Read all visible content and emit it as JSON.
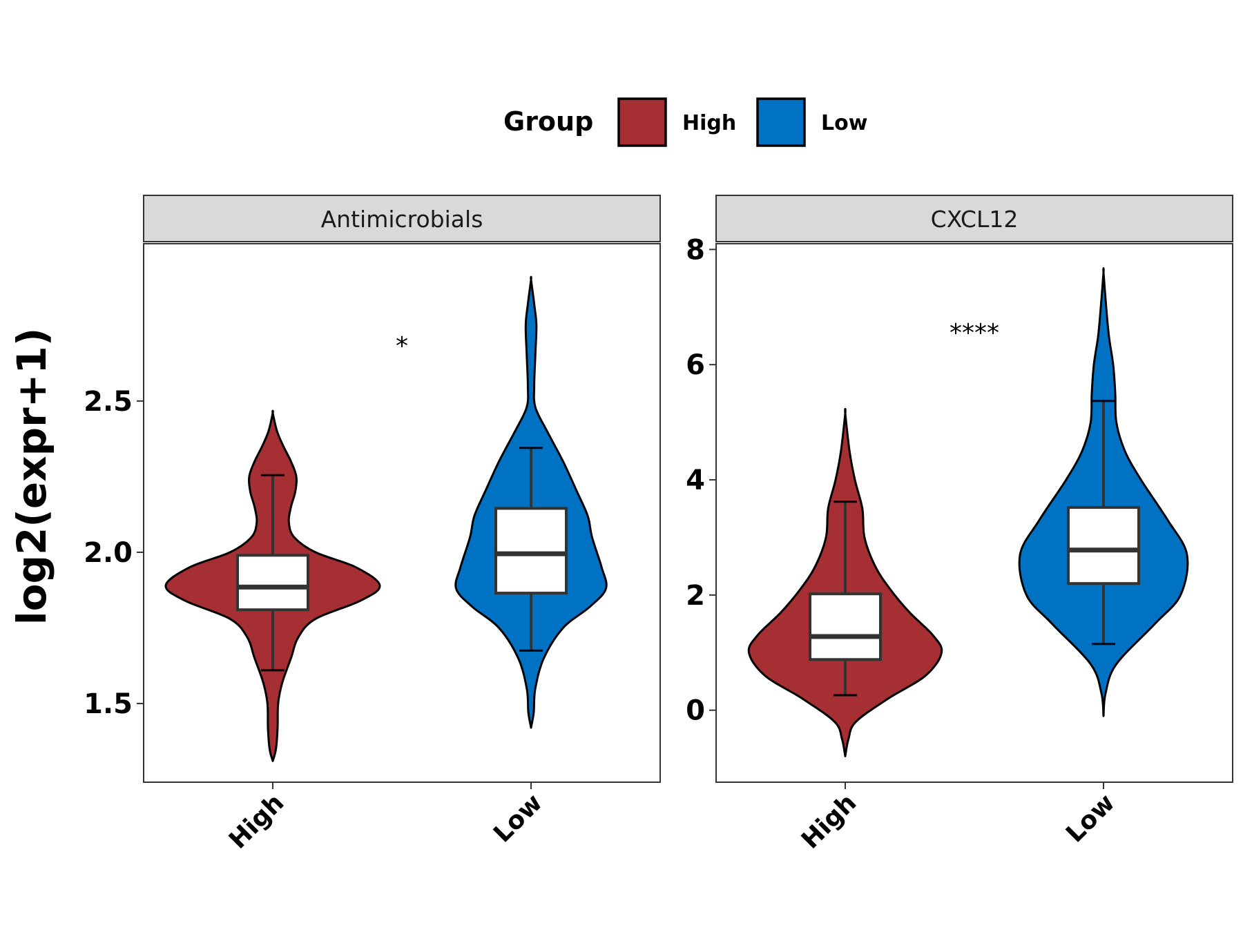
{
  "legend": {
    "title": "Group",
    "items": [
      {
        "label": "High",
        "color": "#A52F33"
      },
      {
        "label": "Low",
        "color": "#0072C4"
      }
    ]
  },
  "chart_data": {
    "type": "violin",
    "ylabel": "log2(expr+1)",
    "groups": [
      "High",
      "Low"
    ],
    "group_colors": {
      "High": "#A52F33",
      "Low": "#0072C4"
    },
    "panels": [
      {
        "title": "Antimicrobials",
        "ylim": [
          1.24,
          3.02
        ],
        "yticks": [
          1.5,
          2.0,
          2.5
        ],
        "significance": "*",
        "significance_y": 2.7,
        "violins": [
          {
            "group": "High",
            "profile": [
              [
                1.31,
                0.0
              ],
              [
                1.35,
                0.03
              ],
              [
                1.42,
                0.045
              ],
              [
                1.5,
                0.05
              ],
              [
                1.57,
                0.09
              ],
              [
                1.65,
                0.17
              ],
              [
                1.72,
                0.24
              ],
              [
                1.78,
                0.4
              ],
              [
                1.84,
                0.82
              ],
              [
                1.89,
                1.0
              ],
              [
                1.95,
                0.78
              ],
              [
                2.0,
                0.4
              ],
              [
                2.05,
                0.2
              ],
              [
                2.1,
                0.15
              ],
              [
                2.15,
                0.17
              ],
              [
                2.2,
                0.21
              ],
              [
                2.25,
                0.22
              ],
              [
                2.3,
                0.17
              ],
              [
                2.35,
                0.1
              ],
              [
                2.4,
                0.04
              ],
              [
                2.46,
                0.0
              ]
            ],
            "box": {
              "min": 1.61,
              "q1": 1.81,
              "median": 1.885,
              "q3": 1.99,
              "max": 2.255
            }
          },
          {
            "group": "Low",
            "profile": [
              [
                1.42,
                0.0
              ],
              [
                1.47,
                0.025
              ],
              [
                1.55,
                0.04
              ],
              [
                1.65,
                0.12
              ],
              [
                1.75,
                0.3
              ],
              [
                1.82,
                0.55
              ],
              [
                1.88,
                0.7
              ],
              [
                1.95,
                0.66
              ],
              [
                2.05,
                0.57
              ],
              [
                2.12,
                0.53
              ],
              [
                2.2,
                0.43
              ],
              [
                2.3,
                0.3
              ],
              [
                2.4,
                0.15
              ],
              [
                2.48,
                0.04
              ],
              [
                2.55,
                0.03
              ],
              [
                2.65,
                0.04
              ],
              [
                2.75,
                0.05
              ],
              [
                2.82,
                0.03
              ],
              [
                2.9,
                0.0
              ]
            ],
            "box": {
              "min": 1.675,
              "q1": 1.865,
              "median": 1.995,
              "q3": 2.145,
              "max": 2.345
            }
          }
        ]
      },
      {
        "title": "CXCL12",
        "ylim": [
          -1.25,
          8.1
        ],
        "yticks": [
          0,
          2,
          4,
          6,
          8
        ],
        "significance": "****",
        "significance_y": 6.65,
        "violins": [
          {
            "group": "High",
            "profile": [
              [
                -0.8,
                0.0
              ],
              [
                -0.5,
                0.03
              ],
              [
                -0.2,
                0.1
              ],
              [
                0.2,
                0.4
              ],
              [
                0.6,
                0.75
              ],
              [
                1.0,
                0.9
              ],
              [
                1.3,
                0.82
              ],
              [
                1.7,
                0.6
              ],
              [
                2.1,
                0.42
              ],
              [
                2.5,
                0.28
              ],
              [
                3.0,
                0.18
              ],
              [
                3.5,
                0.16
              ],
              [
                4.0,
                0.09
              ],
              [
                4.5,
                0.04
              ],
              [
                5.15,
                0.0
              ]
            ],
            "box": {
              "min": 0.26,
              "q1": 0.88,
              "median": 1.28,
              "q3": 2.02,
              "max": 3.62
            }
          },
          {
            "group": "Low",
            "profile": [
              [
                -0.1,
                0.0
              ],
              [
                0.3,
                0.02
              ],
              [
                0.8,
                0.12
              ],
              [
                1.5,
                0.48
              ],
              [
                2.0,
                0.72
              ],
              [
                2.7,
                0.78
              ],
              [
                3.3,
                0.6
              ],
              [
                4.0,
                0.35
              ],
              [
                4.5,
                0.2
              ],
              [
                5.0,
                0.12
              ],
              [
                5.5,
                0.11
              ],
              [
                6.0,
                0.09
              ],
              [
                6.5,
                0.05
              ],
              [
                7.0,
                0.025
              ],
              [
                7.6,
                0.0
              ]
            ],
            "box": {
              "min": 1.15,
              "q1": 2.2,
              "median": 2.78,
              "q3": 3.52,
              "max": 5.37
            }
          }
        ]
      }
    ]
  }
}
